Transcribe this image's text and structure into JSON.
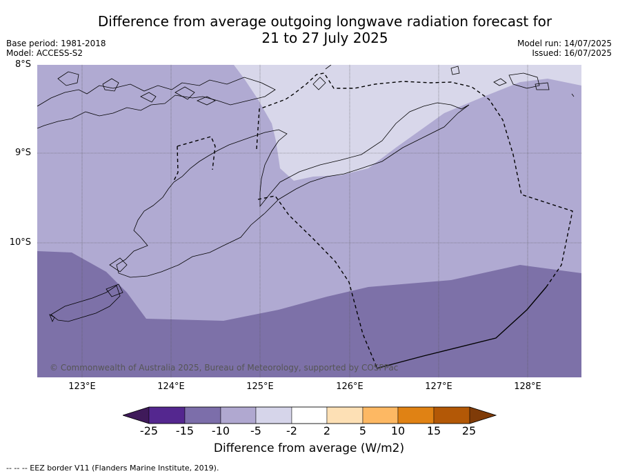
{
  "title_line1": "Difference from average outgoing longwave radiation forecast for",
  "title_line2": "21 to 27 July 2025",
  "meta_left": [
    "Base period: 1981-2018",
    "Model: ACCESS-S2"
  ],
  "meta_right": [
    "Model run: 14/07/2025",
    "Issued: 16/07/2025"
  ],
  "lat_labels": [
    "8°S",
    "9°S",
    "10°S"
  ],
  "lon_labels": [
    "123°E",
    "124°E",
    "125°E",
    "126°E",
    "127°E",
    "128°E"
  ],
  "copyright": "© Commonwealth of Australia 2025, Bureau of Meteorology, supported by COSPPac",
  "colorbar": {
    "ticks": [
      "-25",
      "-15",
      "-10",
      "-5",
      "-2",
      "2",
      "5",
      "10",
      "15",
      "25"
    ],
    "colors": [
      "#3f1a5a",
      "#54278f",
      "#7c6eaa",
      "#b0a8d0",
      "#d6d5ea",
      "#ffffff",
      "#fde0b5",
      "#fdb863",
      "#e08214",
      "#b35806",
      "#7f3b08"
    ],
    "label": "Difference from average (W/m2)"
  },
  "map_colors": {
    "minus_15_10": "#7d71a8",
    "minus_10_5": "#b0aad2",
    "minus_5_2": "#d8d7ea"
  },
  "footer": "--  --  -- EEZ border V11 (Flanders Marine Institute, 2019)."
}
